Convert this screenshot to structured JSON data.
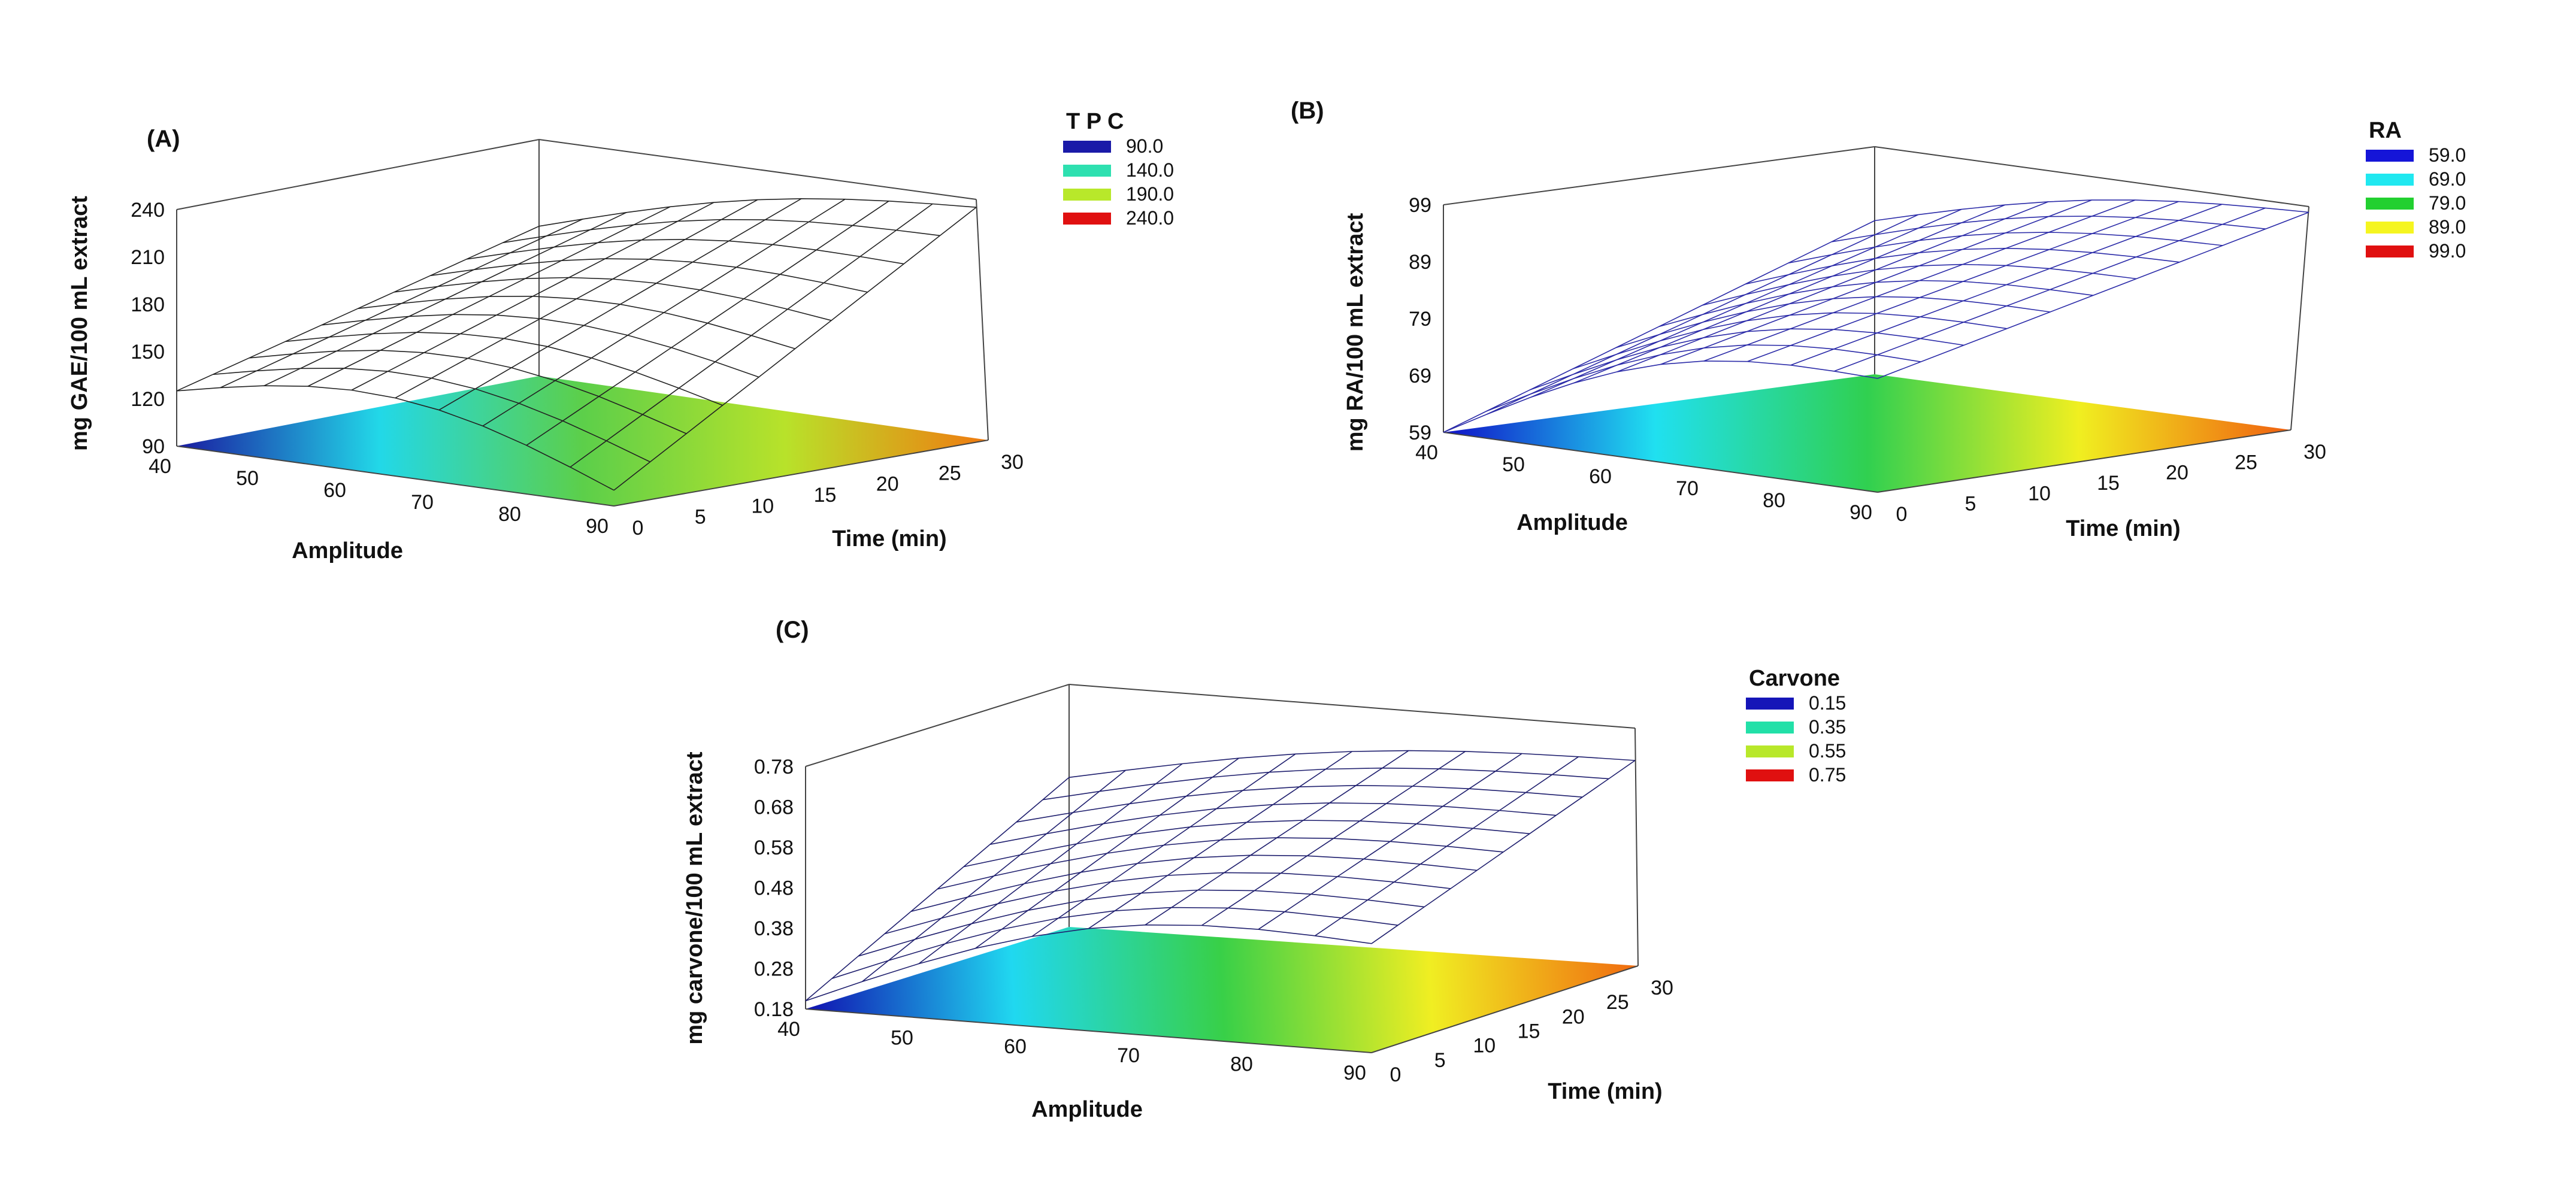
{
  "chart_data": [
    {
      "type": "surface",
      "panel": "(A)",
      "zlabel": "mg GAE/100 mL extract",
      "xlabel": "Amplitude",
      "ylabel": "Time (min)",
      "x_range": [
        40,
        90
      ],
      "y_range": [
        0,
        30
      ],
      "z_range": [
        90,
        240
      ],
      "x_ticks": [
        "40",
        "50",
        "60",
        "70",
        "80",
        "90"
      ],
      "y_ticks": [
        "0",
        "5",
        "10",
        "15",
        "20",
        "25",
        "30"
      ],
      "z_ticks": [
        "90",
        "120",
        "150",
        "180",
        "210",
        "240"
      ],
      "legend_title": "T P C",
      "legend": [
        {
          "label": "90.0",
          "color": "#1a1aa8"
        },
        {
          "label": "140.0",
          "color": "#2ee0b0"
        },
        {
          "label": "190.0",
          "color": "#b8e82a"
        },
        {
          "label": "240.0",
          "color": "#e01010"
        }
      ],
      "mesh_color": "#222222",
      "surface_corners": {
        "a40_t0": 125,
        "a90_t0": 100,
        "a40_t30": 185,
        "a90_t30": 235
      }
    },
    {
      "type": "surface",
      "panel": "(B)",
      "zlabel": "mg RA/100 mL extract",
      "xlabel": "Amplitude",
      "ylabel": "Time (min)",
      "x_range": [
        40,
        90
      ],
      "y_range": [
        0,
        30
      ],
      "z_range": [
        59,
        99
      ],
      "x_ticks": [
        "40",
        "50",
        "60",
        "70",
        "80",
        "90"
      ],
      "y_ticks": [
        "0",
        "5",
        "10",
        "15",
        "20",
        "25",
        "30"
      ],
      "z_ticks": [
        "59",
        "69",
        "79",
        "89",
        "99"
      ],
      "legend_title": "RA",
      "legend": [
        {
          "label": "59.0",
          "color": "#1515d8"
        },
        {
          "label": "69.0",
          "color": "#20e8f0"
        },
        {
          "label": "79.0",
          "color": "#22d030"
        },
        {
          "label": "89.0",
          "color": "#f5f520"
        },
        {
          "label": "99.0",
          "color": "#e01010"
        }
      ],
      "mesh_color": "#2b2ba8",
      "surface_corners": {
        "a40_t0": 59,
        "a90_t0": 79,
        "a40_t30": 86,
        "a90_t30": 98
      }
    },
    {
      "type": "surface",
      "panel": "(C)",
      "zlabel": "mg carvone/100 mL extract",
      "xlabel": "Amplitude",
      "ylabel": "Time (min)",
      "x_range": [
        40,
        90
      ],
      "y_range": [
        0,
        30
      ],
      "z_range": [
        0.18,
        0.78
      ],
      "x_ticks": [
        "40",
        "50",
        "60",
        "70",
        "80",
        "90"
      ],
      "y_ticks": [
        "0",
        "5",
        "10",
        "15",
        "20",
        "25",
        "30"
      ],
      "z_ticks": [
        "0.18",
        "0.28",
        "0.38",
        "0.48",
        "0.58",
        "0.68",
        "0.78"
      ],
      "legend_title": "Carvone",
      "legend": [
        {
          "label": "0.15",
          "color": "#1515b8"
        },
        {
          "label": "0.35",
          "color": "#22e0a8"
        },
        {
          "label": "0.55",
          "color": "#b8e82a"
        },
        {
          "label": "0.75",
          "color": "#e01010"
        }
      ],
      "mesh_color": "#1f1f6e",
      "surface_corners": {
        "a40_t0": 0.2,
        "a90_t0": 0.45,
        "a40_t30": 0.55,
        "a90_t30": 0.7
      }
    }
  ]
}
